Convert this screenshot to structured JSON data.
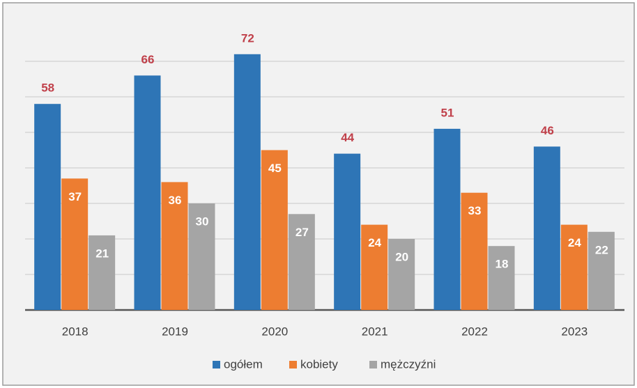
{
  "chart_data": {
    "type": "bar",
    "categories": [
      "2018",
      "2019",
      "2020",
      "2021",
      "2022",
      "2023"
    ],
    "series": [
      {
        "name": "ogółem",
        "color": "#2e75b6",
        "values": [
          58,
          66,
          72,
          44,
          51,
          46
        ]
      },
      {
        "name": "kobiety",
        "color": "#ed7d31",
        "values": [
          37,
          36,
          45,
          24,
          33,
          24
        ]
      },
      {
        "name": "mężczyźni",
        "color": "#a5a5a5",
        "values": [
          21,
          30,
          27,
          20,
          18,
          22
        ]
      }
    ],
    "ylim": [
      0,
      80
    ],
    "yticks": [
      0,
      10,
      20,
      30,
      40,
      50,
      60,
      70
    ],
    "grid": true,
    "legend": "bottom"
  }
}
